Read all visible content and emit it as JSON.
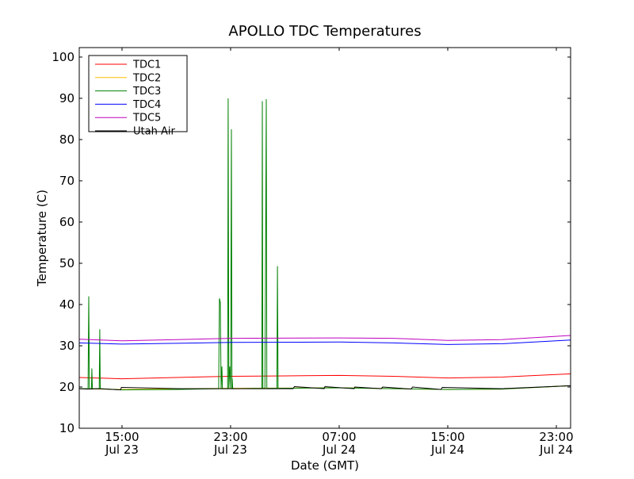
{
  "chart_data": {
    "type": "line",
    "title": "APOLLO TDC Temperatures",
    "xlabel": "Date (GMT)",
    "ylabel": "Temperature (C)",
    "x_units": "hours since Jul 23 00:00 GMT",
    "xlim": [
      11.85,
      48.05
    ],
    "ylim": [
      10,
      102.3
    ],
    "yticks": [
      10,
      20,
      30,
      40,
      50,
      60,
      70,
      80,
      90,
      100
    ],
    "xticks": [
      {
        "x": 15,
        "time": "15:00",
        "date": "Jul 23"
      },
      {
        "x": 23,
        "time": "23:00",
        "date": "Jul 23"
      },
      {
        "x": 31,
        "time": "07:00",
        "date": "Jul 24"
      },
      {
        "x": 39,
        "time": "15:00",
        "date": "Jul 24"
      },
      {
        "x": 47,
        "time": "23:00",
        "date": "Jul 24"
      }
    ],
    "legend_position": "top-left",
    "series": [
      {
        "name": "TDC1",
        "color": "#ff0000",
        "points": [
          [
            11.85,
            22.3
          ],
          [
            15,
            22.0
          ],
          [
            19,
            22.3
          ],
          [
            23,
            22.6
          ],
          [
            27,
            22.7
          ],
          [
            31,
            22.8
          ],
          [
            35,
            22.6
          ],
          [
            39,
            22.2
          ],
          [
            43,
            22.4
          ],
          [
            48.05,
            23.2
          ]
        ]
      },
      {
        "name": "TDC2",
        "color": "#ffbf00",
        "points": [
          [
            11.85,
            19.6
          ],
          [
            15,
            19.4
          ],
          [
            23,
            19.7
          ],
          [
            31,
            19.8
          ],
          [
            39,
            19.4
          ],
          [
            43,
            19.5
          ],
          [
            48.05,
            20.3
          ]
        ]
      },
      {
        "name": "TDC3",
        "color": "#008000",
        "points": [
          [
            11.85,
            19.6
          ],
          [
            12.5,
            19.6
          ],
          [
            12.55,
            42
          ],
          [
            12.6,
            19.6
          ],
          [
            12.75,
            19.6
          ],
          [
            12.78,
            24.5
          ],
          [
            12.82,
            19.6
          ],
          [
            13.32,
            19.6
          ],
          [
            13.36,
            34
          ],
          [
            13.4,
            19.6
          ],
          [
            15,
            19.3
          ],
          [
            19,
            19.4
          ],
          [
            22.12,
            19.6
          ],
          [
            22.18,
            41.5
          ],
          [
            22.24,
            40.5
          ],
          [
            22.3,
            19.6
          ],
          [
            22.36,
            25
          ],
          [
            22.4,
            19.6
          ],
          [
            22.78,
            19.6
          ],
          [
            22.82,
            90
          ],
          [
            22.87,
            19.6
          ],
          [
            22.94,
            25
          ],
          [
            23.0,
            19.6
          ],
          [
            23.06,
            82.5
          ],
          [
            23.1,
            19.6
          ],
          [
            23.12,
            22
          ],
          [
            23.16,
            19.6
          ],
          [
            25.3,
            19.7
          ],
          [
            25.34,
            89.3
          ],
          [
            25.38,
            19.7
          ],
          [
            25.53,
            19.7
          ],
          [
            25.57,
            47
          ],
          [
            25.63,
            89.8
          ],
          [
            25.67,
            19.7
          ],
          [
            26.41,
            19.7
          ],
          [
            26.45,
            49.3
          ],
          [
            26.5,
            19.7
          ],
          [
            31,
            19.8
          ],
          [
            35,
            19.6
          ],
          [
            39,
            19.4
          ],
          [
            43,
            19.5
          ],
          [
            48.05,
            20.3
          ]
        ]
      },
      {
        "name": "TDC4",
        "color": "#0000ff",
        "points": [
          [
            11.85,
            30.7
          ],
          [
            15,
            30.4
          ],
          [
            19,
            30.6
          ],
          [
            23,
            30.8
          ],
          [
            31,
            30.9
          ],
          [
            35,
            30.7
          ],
          [
            39,
            30.3
          ],
          [
            43,
            30.5
          ],
          [
            48.05,
            31.4
          ]
        ]
      },
      {
        "name": "TDC5",
        "color": "#bf00bf",
        "points": [
          [
            11.85,
            31.6
          ],
          [
            15,
            31.2
          ],
          [
            19,
            31.5
          ],
          [
            23,
            31.8
          ],
          [
            31,
            31.9
          ],
          [
            35,
            31.8
          ],
          [
            39,
            31.3
          ],
          [
            43,
            31.5
          ],
          [
            48.05,
            32.5
          ]
        ]
      },
      {
        "name": "Utah Air",
        "color": "#000000",
        "points": [
          [
            11.85,
            19.6
          ],
          [
            12.5,
            19.5
          ],
          [
            13.2,
            19.6
          ],
          [
            14.9,
            19.3
          ],
          [
            14.95,
            19.9
          ],
          [
            19.3,
            19.6
          ],
          [
            27.6,
            19.6
          ],
          [
            27.7,
            20.1
          ],
          [
            27.72,
            20.1
          ],
          [
            29.9,
            19.6
          ],
          [
            29.95,
            20.1
          ],
          [
            32.1,
            19.6
          ],
          [
            32.15,
            20.0
          ],
          [
            34.1,
            19.6
          ],
          [
            34.2,
            20.0
          ],
          [
            36.3,
            19.5
          ],
          [
            36.4,
            20.0
          ],
          [
            38.5,
            19.4
          ],
          [
            38.6,
            19.9
          ],
          [
            43,
            19.6
          ],
          [
            48.05,
            20.3
          ]
        ]
      }
    ]
  }
}
